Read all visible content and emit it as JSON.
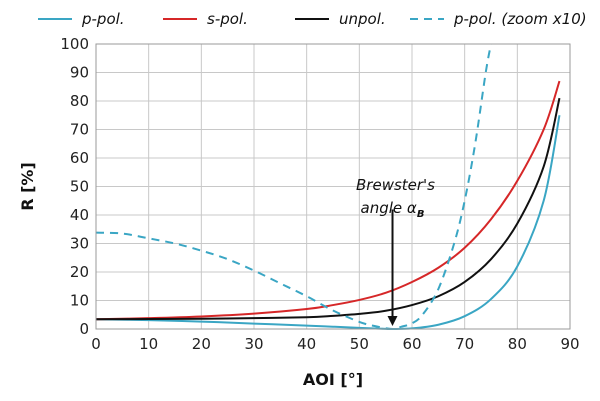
{
  "chart_data": {
    "type": "line",
    "title": "",
    "xlabel": "AOI [°]",
    "ylabel": "R [%]",
    "xlim": [
      0,
      90
    ],
    "ylim": [
      0,
      100
    ],
    "xticks": [
      0,
      10,
      20,
      30,
      40,
      50,
      60,
      70,
      80,
      90
    ],
    "yticks": [
      0,
      10,
      20,
      30,
      40,
      50,
      60,
      70,
      80,
      90,
      100
    ],
    "grid": true,
    "legend_position": "top",
    "series": [
      {
        "name": "p-pol.",
        "color": "#3aa6c4",
        "dash": "solid",
        "x": [
          0,
          10,
          20,
          30,
          40,
          45,
          50,
          55,
          56.3,
          60,
          65,
          70,
          75,
          80,
          85,
          88
        ],
        "y": [
          3.4,
          3.1,
          2.6,
          1.9,
          1.2,
          0.8,
          0.4,
          0.05,
          0,
          0.2,
          1.5,
          4.5,
          10.5,
          22,
          45,
          75
        ]
      },
      {
        "name": "s-pol.",
        "color": "#d62728",
        "dash": "solid",
        "x": [
          0,
          10,
          20,
          30,
          40,
          45,
          50,
          55,
          60,
          65,
          70,
          75,
          80,
          85,
          88
        ],
        "y": [
          3.4,
          3.8,
          4.4,
          5.4,
          7.0,
          8.4,
          10.2,
          12.7,
          16.5,
          21.5,
          28.5,
          38.5,
          52,
          70,
          87
        ]
      },
      {
        "name": "unpol.",
        "color": "#111111",
        "dash": "solid",
        "x": [
          0,
          10,
          20,
          30,
          40,
          45,
          50,
          55,
          60,
          65,
          70,
          75,
          80,
          85,
          88
        ],
        "y": [
          3.4,
          3.5,
          3.6,
          3.8,
          4.1,
          4.6,
          5.3,
          6.4,
          8.4,
          11.5,
          16.5,
          24.5,
          37,
          57,
          81
        ]
      },
      {
        "name": "p-pol. (zoom x10)",
        "color": "#3aa6c4",
        "dash": "dashed",
        "x": [
          0,
          5,
          10,
          15,
          20,
          25,
          30,
          35,
          40,
          45,
          50,
          53,
          56.3,
          58,
          60,
          62,
          65,
          68,
          70,
          72,
          74,
          75
        ],
        "y": [
          33.8,
          33.5,
          31.8,
          30,
          27.5,
          24.5,
          20.5,
          16,
          11.5,
          6.5,
          2.5,
          1,
          0,
          0.8,
          2,
          5,
          14,
          30,
          45,
          65,
          90,
          100
        ]
      }
    ],
    "annotation": {
      "text_line1": "Brewster's",
      "text_line2": "angle α",
      "text_sub": "B",
      "x": 56.3,
      "y_start": 37,
      "y_end": 0
    }
  }
}
